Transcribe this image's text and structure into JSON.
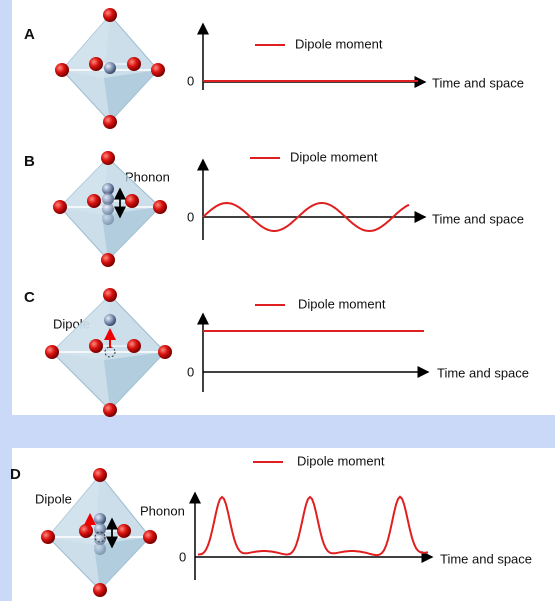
{
  "panels": [
    {
      "label": "A",
      "legend": "Dipole moment",
      "axis_zero": "0",
      "x_axis_label": "Time and space"
    },
    {
      "label": "B",
      "legend": "Dipole moment",
      "axis_zero": "0",
      "x_axis_label": "Time and space",
      "annotations": [
        "Phonon"
      ]
    },
    {
      "label": "C",
      "legend": "Dipole moment",
      "axis_zero": "0",
      "x_axis_label": "Time and space",
      "annotations": [
        "Dipole"
      ]
    },
    {
      "label": "D",
      "legend": "Dipole moment",
      "axis_zero": "0",
      "x_axis_label": "Time and space",
      "annotations": [
        "Dipole",
        "Phonon"
      ]
    }
  ]
}
